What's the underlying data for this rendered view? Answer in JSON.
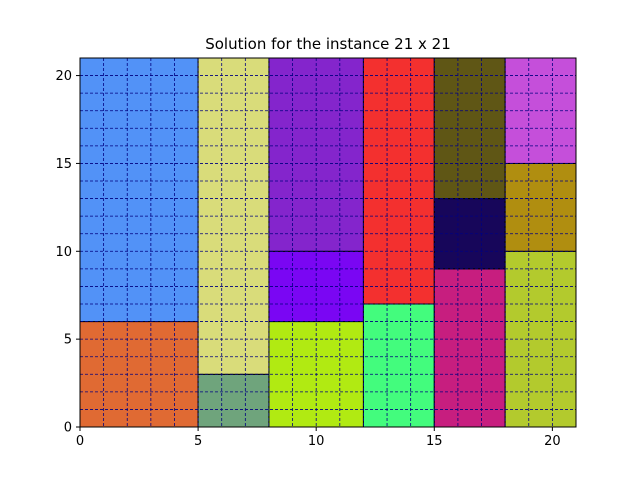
{
  "chart_data": {
    "type": "rectangle-packing",
    "title": "Solution for the instance 21 x 21",
    "xlabel": "",
    "ylabel": "",
    "xlim": [
      0,
      21
    ],
    "ylim": [
      0,
      21
    ],
    "xticks": [
      0,
      5,
      10,
      15,
      20
    ],
    "yticks": [
      0,
      5,
      10,
      15,
      20
    ],
    "grid": {
      "visible": true,
      "step": 1,
      "style": "dashed",
      "color": "#000080"
    },
    "rectangles": [
      {
        "x": 0,
        "y": 0,
        "w": 5,
        "h": 6,
        "color": "#e06a33"
      },
      {
        "x": 0,
        "y": 6,
        "w": 5,
        "h": 15,
        "color": "#5292f7"
      },
      {
        "x": 5,
        "y": 0,
        "w": 3,
        "h": 3,
        "color": "#6fa47c"
      },
      {
        "x": 5,
        "y": 3,
        "w": 3,
        "h": 18,
        "color": "#d9dc7a"
      },
      {
        "x": 8,
        "y": 0,
        "w": 4,
        "h": 6,
        "color": "#b1ea12"
      },
      {
        "x": 8,
        "y": 6,
        "w": 4,
        "h": 4,
        "color": "#7a06f3"
      },
      {
        "x": 8,
        "y": 10,
        "w": 4,
        "h": 11,
        "color": "#8425cc"
      },
      {
        "x": 12,
        "y": 0,
        "w": 3,
        "h": 7,
        "color": "#43fc7d"
      },
      {
        "x": 12,
        "y": 7,
        "w": 3,
        "h": 14,
        "color": "#f3302f"
      },
      {
        "x": 15,
        "y": 0,
        "w": 3,
        "h": 9,
        "color": "#c71e7f"
      },
      {
        "x": 15,
        "y": 9,
        "w": 3,
        "h": 4,
        "color": "#17065a"
      },
      {
        "x": 15,
        "y": 13,
        "w": 3,
        "h": 8,
        "color": "#5f5615"
      },
      {
        "x": 18,
        "y": 0,
        "w": 3,
        "h": 10,
        "color": "#b3ca2d"
      },
      {
        "x": 18,
        "y": 10,
        "w": 3,
        "h": 5,
        "color": "#b08e10"
      },
      {
        "x": 18,
        "y": 15,
        "w": 3,
        "h": 6,
        "color": "#c54fda"
      }
    ]
  }
}
